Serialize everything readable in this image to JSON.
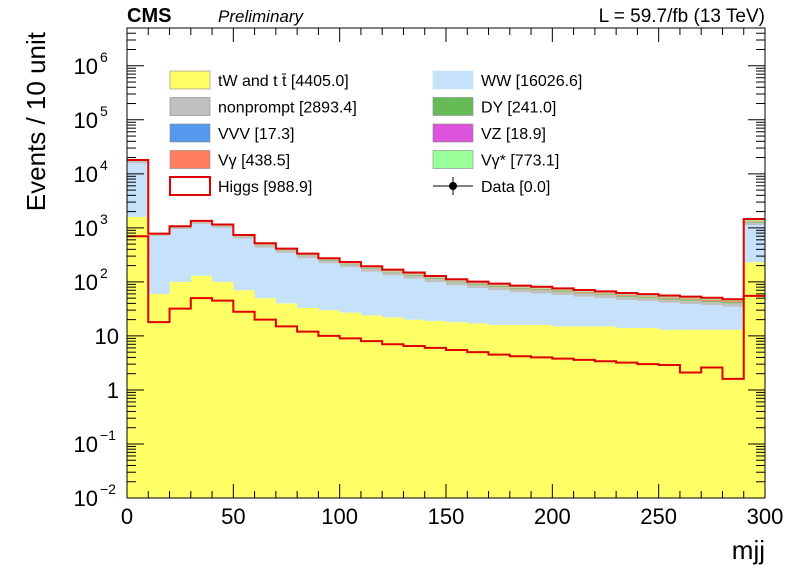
{
  "header": {
    "experiment": "CMS",
    "status": "Preliminary",
    "lumi": "L = 59.7/fb (13 TeV)"
  },
  "chart_data": {
    "type": "bar",
    "stacked": true,
    "xlabel": "mjj",
    "ylabel": "Events / 10 unit",
    "xlim": [
      0,
      300
    ],
    "ylim": [
      0.01,
      5000000
    ],
    "log_y": true,
    "grid": false,
    "x_ticks": [
      "0",
      "50",
      "100",
      "150",
      "200",
      "250",
      "300"
    ],
    "y_ticks": [
      {
        "value": 0.01,
        "base": "10",
        "exp": "−2"
      },
      {
        "value": 0.1,
        "base": "10",
        "exp": "−1"
      },
      {
        "value": 1,
        "base": "1",
        "exp": ""
      },
      {
        "value": 10,
        "base": "10",
        "exp": ""
      },
      {
        "value": 100,
        "base": "10",
        "exp": "2"
      },
      {
        "value": 1000,
        "base": "10",
        "exp": "3"
      },
      {
        "value": 10000,
        "base": "10",
        "exp": "4"
      },
      {
        "value": 100000,
        "base": "10",
        "exp": "5"
      },
      {
        "value": 1000000,
        "base": "10",
        "exp": "6"
      }
    ],
    "bin_edges": [
      0,
      10,
      20,
      30,
      40,
      50,
      60,
      70,
      80,
      90,
      100,
      110,
      120,
      130,
      140,
      150,
      160,
      170,
      180,
      190,
      200,
      210,
      220,
      230,
      240,
      250,
      260,
      270,
      280,
      290,
      300
    ],
    "legend_position": "top",
    "legend": [
      {
        "label": "tW and t t̄ [4405.0]",
        "color": "#ffff66",
        "style": "fill"
      },
      {
        "label": "WW [16026.6]",
        "color": "#c6e2fa",
        "style": "fill"
      },
      {
        "label": "nonprompt [2893.4]",
        "color": "#c0c0c0",
        "style": "fill"
      },
      {
        "label": "DY [241.0]",
        "color": "#66bb55",
        "style": "fill"
      },
      {
        "label": "VVV [17.3]",
        "color": "#5599ee",
        "style": "fill"
      },
      {
        "label": "VZ [18.9]",
        "color": "#dd55dd",
        "style": "fill"
      },
      {
        "label": "Vγ [438.5]",
        "color": "#ff7f60",
        "style": "fill"
      },
      {
        "label": "Vγ* [773.1]",
        "color": "#99ff99",
        "style": "fill"
      },
      {
        "label": "Higgs [988.9]",
        "color": "#e00000",
        "style": "line"
      },
      {
        "label": "Data [0.0]",
        "color": "#000000",
        "style": "marker"
      }
    ],
    "series": [
      {
        "name": "tW and t t̄",
        "color": "#ffff66",
        "values": [
          1600,
          60,
          100,
          130,
          100,
          70,
          50,
          40,
          33,
          30,
          27,
          24,
          22,
          20,
          19,
          18,
          17,
          16,
          16,
          16,
          15,
          15,
          15,
          14,
          14,
          13,
          13,
          13,
          13,
          230
        ]
      },
      {
        "name": "WW",
        "color": "#c6e2fa",
        "values": [
          14000,
          650,
          850,
          1050,
          900,
          560,
          380,
          300,
          240,
          190,
          160,
          130,
          110,
          95,
          80,
          68,
          60,
          54,
          48,
          45,
          42,
          38,
          35,
          32,
          30,
          28,
          26,
          24,
          22,
          900
        ]
      },
      {
        "name": "nonprompt",
        "color": "#c0c0c0",
        "values": [
          1200,
          35,
          60,
          80,
          75,
          55,
          45,
          38,
          32,
          28,
          24,
          20,
          18,
          16,
          14,
          12,
          11,
          10,
          9,
          9,
          8,
          8,
          7,
          7,
          6,
          6,
          6,
          5,
          5,
          120
        ]
      },
      {
        "name": "DY",
        "color": "#66bb55",
        "values": [
          100,
          3,
          5,
          7,
          6,
          6,
          8,
          7,
          6,
          6,
          5,
          5,
          4,
          4,
          4,
          3,
          3,
          3,
          3,
          2,
          2,
          2,
          2,
          2,
          2,
          2,
          2,
          2,
          2,
          30
        ]
      },
      {
        "name": "VVV",
        "color": "#5599ee",
        "values": [
          4,
          0.3,
          0.5,
          0.6,
          0.5,
          0.4,
          0.4,
          0.3,
          0.3,
          0.3,
          0.2,
          0.2,
          0.2,
          0.2,
          0.2,
          0.1,
          0.1,
          0.1,
          0.1,
          0.1,
          0.1,
          0.1,
          0.1,
          0.1,
          0.1,
          0.1,
          0.1,
          0.1,
          0.1,
          2
        ]
      },
      {
        "name": "VZ",
        "color": "#dd55dd",
        "values": [
          5,
          0.3,
          0.5,
          0.6,
          0.5,
          0.4,
          0.4,
          0.3,
          0.3,
          0.3,
          0.2,
          0.2,
          0.2,
          0.2,
          0.2,
          0.1,
          0.1,
          0.1,
          0.1,
          0.1,
          0.1,
          0.1,
          0.1,
          0.1,
          0.1,
          0.1,
          0.1,
          0.1,
          0.1,
          2
        ]
      },
      {
        "name": "Vγ",
        "color": "#ff7f60",
        "values": [
          150,
          5,
          8,
          10,
          9,
          7,
          6,
          5,
          4,
          4,
          3,
          3,
          3,
          3,
          2,
          2,
          2,
          2,
          2,
          2,
          2,
          2,
          2,
          2,
          2,
          2,
          2,
          2,
          2,
          40
        ]
      },
      {
        "name": "Vγ*",
        "color": "#99ff99",
        "values": [
          250,
          10,
          15,
          20,
          17,
          12,
          10,
          8,
          6,
          5,
          5,
          4,
          4,
          4,
          3,
          3,
          3,
          3,
          3,
          3,
          3,
          2,
          2,
          2,
          2,
          2,
          2,
          2,
          2,
          80
        ]
      },
      {
        "name": "Higgs",
        "color": "#e00000",
        "style": "line",
        "values": [
          700,
          18,
          32,
          50,
          45,
          28,
          20,
          15,
          12,
          10,
          9,
          8,
          7,
          6.5,
          6,
          5.5,
          5,
          4.5,
          4.2,
          4,
          3.8,
          3.6,
          3.4,
          3.2,
          3,
          2.9,
          2.1,
          2.6,
          1.6,
          55
        ]
      }
    ]
  }
}
